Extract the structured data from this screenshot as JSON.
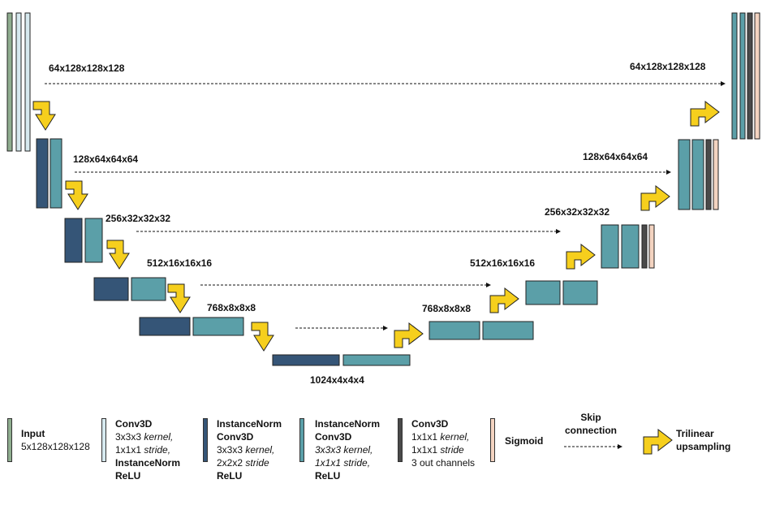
{
  "colors": {
    "input": "#8fad8f",
    "conv_in_relu": "#d6e9ef",
    "inorm_down": "#355577",
    "inorm_conv": "#5b9fa8",
    "final_conv": "#4a4a4a",
    "sigmoid": "#f3d3c0",
    "arrow": "#f6cf1d"
  },
  "labels": {
    "enc1": "64x128x128x128",
    "enc2": "128x64x64x64",
    "enc3": "256x32x32x32",
    "enc4": "512x16x16x16",
    "enc5": "768x8x8x8",
    "bottleneck": "1024x4x4x4",
    "dec5": "768x8x8x8",
    "dec4": "512x16x16x16",
    "dec3": "256x32x32x32",
    "dec2": "128x64x64x64",
    "dec1": "64x128x128x128"
  },
  "legend": {
    "input": {
      "title": "Input",
      "line2": "5x128x128x128"
    },
    "conv_in": {
      "title": "Conv3D",
      "kernel": "3x3x3 ",
      "kernel_word": "kernel,",
      "stride": "1x1x1 ",
      "stride_word": "stride,",
      "l4": "InstanceNorm",
      "l5": "ReLU"
    },
    "inorm_down": {
      "l1": "InstanceNorm",
      "l2": "Conv3D",
      "kernel": "3x3x3 ",
      "kernel_word": "kernel,",
      "stride": "2x2x2 ",
      "stride_word": "stride",
      "l5": "ReLU"
    },
    "inorm_conv": {
      "l1": "InstanceNorm",
      "l2": "Conv3D",
      "l3": "3x3x3 kernel,",
      "l4": "1x1x1 stride,",
      "l5": "ReLU"
    },
    "final_conv": {
      "title": "Conv3D",
      "kernel": "1x1x1 ",
      "kernel_word": "kernel,",
      "stride": "1x1x1 ",
      "stride_word": "stride",
      "l4": "3 out channels"
    },
    "sigmoid": {
      "title": "Sigmoid"
    },
    "skip": {
      "l1": "Skip",
      "l2": "connection"
    },
    "upsample": {
      "l1": "Trilinear",
      "l2": "upsampling"
    }
  }
}
